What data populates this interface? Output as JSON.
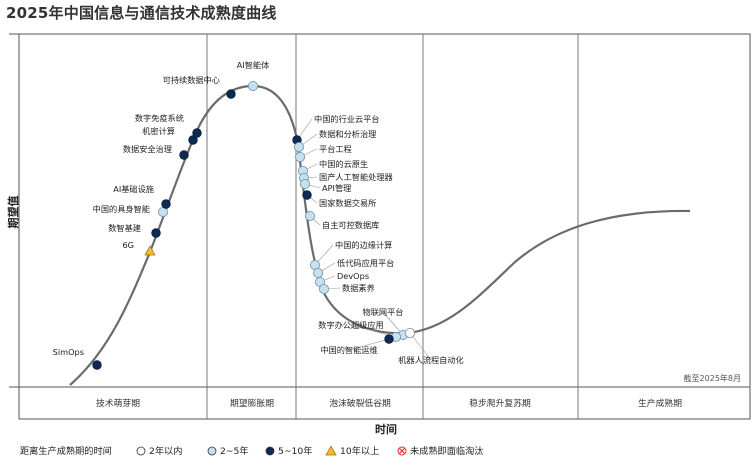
{
  "chart_data": {
    "type": "hype-cycle",
    "title": "2025年中国信息与通信技术成熟度曲线",
    "xlabel": "时间",
    "ylabel": "期望值",
    "note": "截至2025年8月",
    "phases": [
      "技术萌芽期",
      "期望膨胀期",
      "泡沫破裂低谷期",
      "稳步爬升复苏期",
      "生产成熟期"
    ],
    "legend": {
      "title": "距离生产成熟期的时间",
      "items": [
        {
          "key": "lt2",
          "label": "2年以内",
          "color": "#ffffff"
        },
        {
          "key": "y2_5",
          "label": "2~5年",
          "color": "#c5e0ef"
        },
        {
          "key": "y5_10",
          "label": "5~10年",
          "color": "#0e2a52"
        },
        {
          "key": "gt10",
          "label": "10年以上",
          "color": "#f5b82e"
        },
        {
          "key": "obsolete",
          "label": "未成熟即面临淘汰",
          "color": "#e03030"
        }
      ]
    },
    "technologies": [
      {
        "name": "SimOps",
        "category": "y5_10"
      },
      {
        "name": "6G",
        "category": "gt10"
      },
      {
        "name": "数智基建",
        "category": "y5_10"
      },
      {
        "name": "中国的具身智能",
        "category": "y2_5"
      },
      {
        "name": "AI基础设施",
        "category": "y5_10"
      },
      {
        "name": "数据安全治理",
        "category": "y5_10"
      },
      {
        "name": "机密计算",
        "category": "y5_10"
      },
      {
        "name": "数字免疫系统",
        "category": "y5_10"
      },
      {
        "name": "可持续数据中心",
        "category": "y5_10"
      },
      {
        "name": "AI智能体",
        "category": "y2_5"
      },
      {
        "name": "中国的行业云平台",
        "category": "y5_10"
      },
      {
        "name": "数据和分析治理",
        "category": "y2_5"
      },
      {
        "name": "平台工程",
        "category": "y2_5"
      },
      {
        "name": "中国的云原生",
        "category": "y2_5"
      },
      {
        "name": "国产人工智能处理器",
        "category": "y2_5"
      },
      {
        "name": "API管理",
        "category": "y2_5"
      },
      {
        "name": "国家数据交易所",
        "category": "y5_10"
      },
      {
        "name": "自主可控数据库",
        "category": "y2_5"
      },
      {
        "name": "中国的边缘计算",
        "category": "y2_5"
      },
      {
        "name": "低代码应用平台",
        "category": "y2_5"
      },
      {
        "name": "DevOps",
        "category": "y2_5"
      },
      {
        "name": "数据素养",
        "category": "y2_5"
      },
      {
        "name": "物联网平台",
        "category": "y2_5"
      },
      {
        "name": "数字办公超级应用",
        "category": "y2_5"
      },
      {
        "name": "中国的智能运维",
        "category": "y5_10"
      },
      {
        "name": "机器人流程自动化",
        "category": "lt2"
      }
    ]
  }
}
